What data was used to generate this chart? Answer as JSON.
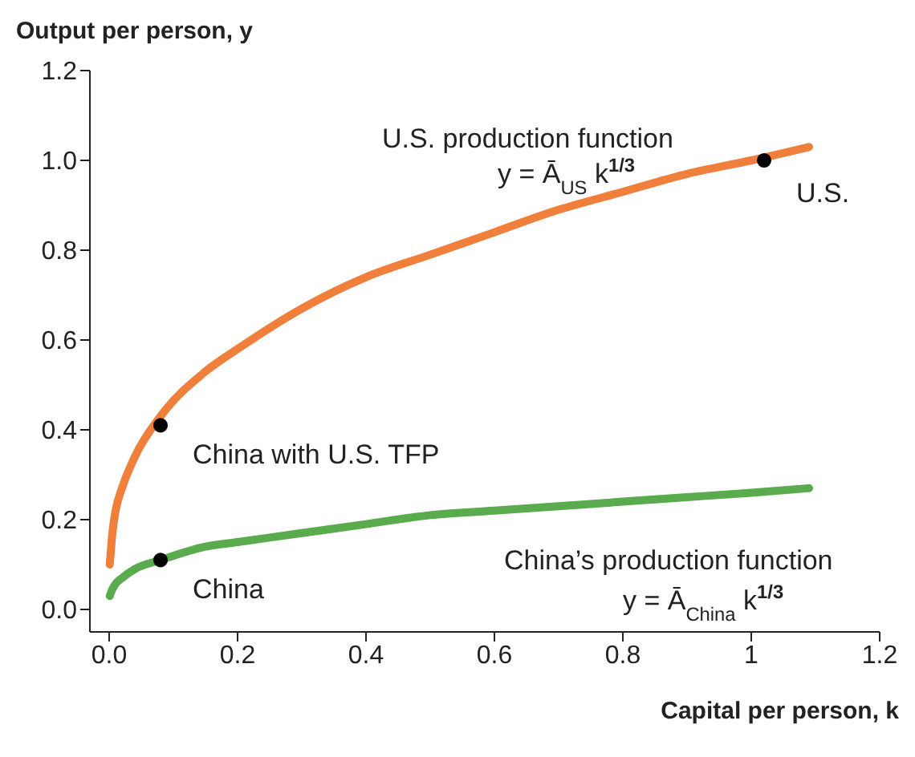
{
  "chart_data": {
    "type": "line",
    "xlabel": "Capital per person, k",
    "ylabel": "Output per person, y",
    "xlim": [
      -0.03,
      1.2
    ],
    "xticks": [
      {
        "value": 0,
        "label": "0.0"
      },
      0.2,
      0.4,
      0.6,
      0.8,
      1,
      1.2
    ],
    "ylim": [
      -0.05,
      1.2
    ],
    "yticks": [
      {
        "value": 0,
        "label": "0.0"
      },
      0.2,
      0.4,
      0.6,
      0.8,
      {
        "value": 1,
        "label": "1.0"
      },
      1.2
    ],
    "grid": false,
    "legend": false,
    "marker": "none",
    "line_style": "solid",
    "series": [
      {
        "color": "#f07f3c",
        "x": [
          0.001,
          0.005,
          0.01,
          0.02,
          0.04,
          0.08,
          0.15,
          0.2,
          0.3,
          0.4,
          0.5,
          0.6,
          0.7,
          0.8,
          0.9,
          1.0,
          1.09
        ],
        "values": [
          0.1,
          0.17,
          0.22,
          0.27,
          0.34,
          0.43,
          0.53,
          0.58,
          0.67,
          0.74,
          0.79,
          0.84,
          0.89,
          0.93,
          0.97,
          1.0,
          1.03
        ]
      },
      {
        "color": "#5aaa4e",
        "x": [
          0.001,
          0.005,
          0.01,
          0.02,
          0.04,
          0.08,
          0.15,
          0.2,
          0.3,
          0.4,
          0.5,
          0.6,
          0.7,
          0.8,
          0.9,
          1.0,
          1.09
        ],
        "values": [
          0.03,
          0.045,
          0.057,
          0.07,
          0.09,
          0.11,
          0.14,
          0.15,
          0.17,
          0.19,
          0.21,
          0.22,
          0.23,
          0.24,
          0.25,
          0.26,
          0.27
        ]
      },
      {
        "type": "scatter",
        "color": "#000000",
        "marker": "circle",
        "x": [
          0.08,
          0.08,
          1.02
        ],
        "values": [
          0.41,
          0.11,
          1.0
        ]
      }
    ],
    "annotations": [
      "U.S. production function",
      "y = Ā$_{US}$ k$^{1/3}$",
      "China’s production function",
      "y = Ā$_{China}$ k$^{1/3}$",
      "China with U.S. TFP",
      "China",
      "U.S."
    ]
  }
}
